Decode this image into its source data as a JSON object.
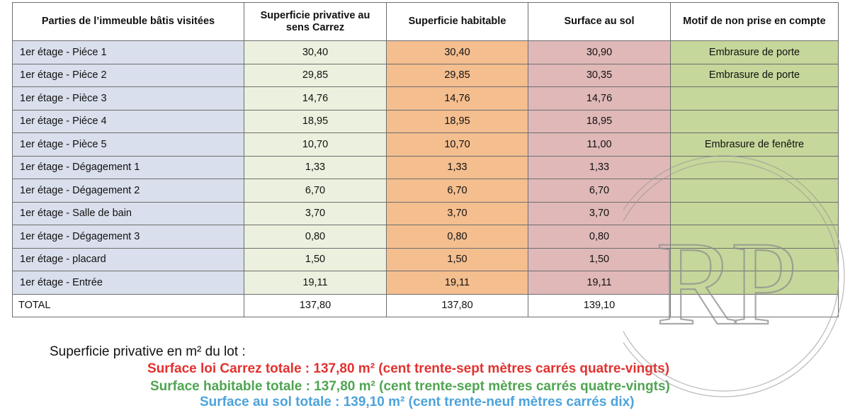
{
  "table": {
    "headers": [
      "Parties de l’immeuble bâtis visitées",
      "Superficie privative au sens Carrez",
      "Superficie habitable",
      "Surface au sol",
      "Motif de non prise en compte"
    ],
    "rows": [
      [
        "1er étage - Piéce 1",
        "30,40",
        "30,40",
        "30,90",
        "Embrasure de porte"
      ],
      [
        "1er étage - Piéce 2",
        "29,85",
        "29,85",
        "30,35",
        "Embrasure de porte"
      ],
      [
        "1er étage - Pièce 3",
        "14,76",
        "14,76",
        "14,76",
        ""
      ],
      [
        "1er étage - Piéce 4",
        "18,95",
        "18,95",
        "18,95",
        ""
      ],
      [
        "1er étage - Pièce 5",
        "10,70",
        "10,70",
        "11,00",
        "Embrasure de fenêtre"
      ],
      [
        "1er étage - Dégagement 1",
        "1,33",
        "1,33",
        "1,33",
        ""
      ],
      [
        "1er étage - Dégagement 2",
        "6,70",
        "6,70",
        "6,70",
        ""
      ],
      [
        "1er étage - Salle de bain",
        "3,70",
        "3,70",
        "3,70",
        ""
      ],
      [
        "1er étage - Dégagement 3",
        "0,80",
        "0,80",
        "0,80",
        ""
      ],
      [
        "1er étage - placard",
        "1,50",
        "1,50",
        "1,50",
        ""
      ],
      [
        "1er étage - Entrée",
        "19,11",
        "19,11",
        "19,11",
        ""
      ]
    ],
    "total": [
      "TOTAL",
      "137,80",
      "137,80",
      "139,10",
      ""
    ]
  },
  "summary": {
    "label": "Superficie privative en m² du lot :",
    "carrez": "Surface loi Carrez totale : 137,80 m² (cent trente-sept mètres carrés quatre-vingts)",
    "habitable": "Surface habitable totale : 137,80 m² (cent trente-sept mètres carrés quatre-vingts)",
    "sol": "Surface au sol totale : 139,10 m² (cent trente-neuf mètres carrés dix)"
  },
  "watermark": {
    "text": "RP"
  },
  "colors": {
    "col_parts": "#d9dfec",
    "col_carrez": "#ebf1de",
    "col_habitable": "#f4be8f",
    "col_sol": "#e0b8b8",
    "col_motif": "#c5d79a",
    "text_carrez": "#e2322f",
    "text_habitable": "#4fa552",
    "text_sol": "#4da3db"
  }
}
